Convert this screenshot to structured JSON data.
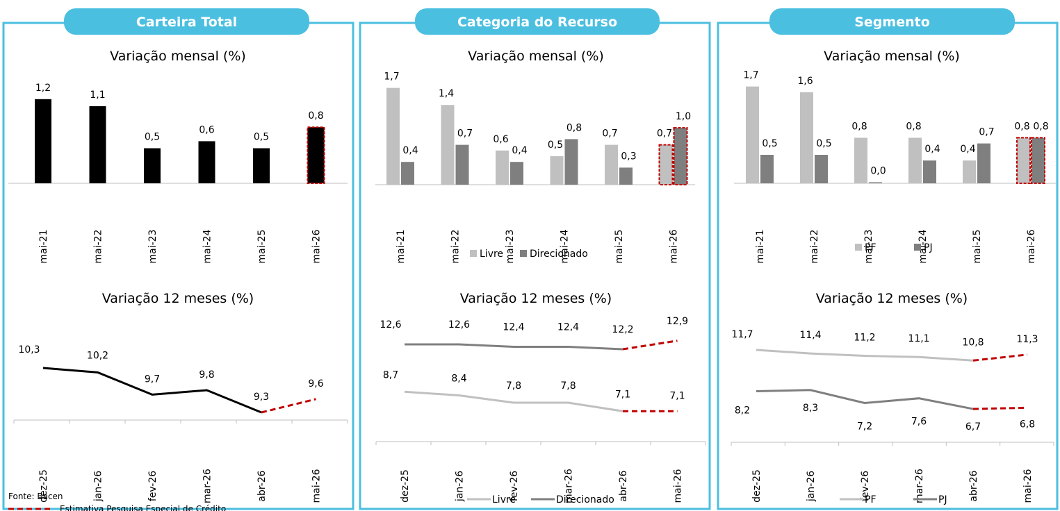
{
  "panels": [
    {
      "tab": "Carteira Total",
      "monthly_title": "Variação mensal (%)",
      "annual_title": "Variação 12 meses (%)"
    },
    {
      "tab": "Categoria do Recurso",
      "monthly_title": "Variação mensal (%)",
      "annual_title": "Variação 12 meses (%)"
    },
    {
      "tab": "Segmento",
      "monthly_title": "Variação mensal (%)",
      "annual_title": "Variação 12 meses (%)"
    }
  ],
  "footer": {
    "source": "Fonte: Bacen",
    "estimate_label": "Estimativa Pesquisa Especial de Crédito"
  },
  "colors": {
    "frame": "#4bbfe0",
    "tab_fill": "#4bbfe0",
    "black": "#000000",
    "light_gray": "#c0c0c0",
    "dark_gray": "#7f7f7f",
    "estimate": "#c00000"
  },
  "chart_data": [
    {
      "id": "total-monthly",
      "type": "bar",
      "title": "Variação mensal (%)",
      "categories": [
        "mai-21",
        "mai-22",
        "mai-23",
        "mai-24",
        "mai-25",
        "mai-26"
      ],
      "series": [
        {
          "values": [
            1.2,
            1.1,
            0.5,
            0.6,
            0.5,
            0.8
          ]
        }
      ],
      "estimate_index": 5
    },
    {
      "id": "total-12m",
      "type": "line",
      "title": "Variação 12 meses (%)",
      "categories": [
        "dez-25",
        "jan-26",
        "fev-26",
        "mar-26",
        "abr-26",
        "mai-26"
      ],
      "series": [
        {
          "values": [
            10.3,
            10.2,
            9.7,
            9.8,
            9.3,
            9.6
          ]
        }
      ],
      "estimate_from_index": 4
    },
    {
      "id": "categoria-monthly",
      "type": "bar",
      "title": "Variação mensal (%)",
      "categories": [
        "mai-21",
        "mai-22",
        "mai-23",
        "mai-24",
        "mai-25",
        "mai-26"
      ],
      "series": [
        {
          "name": "Livre",
          "values": [
            1.7,
            1.4,
            0.6,
            0.5,
            0.7,
            0.7
          ]
        },
        {
          "name": "Direcionado",
          "values": [
            0.4,
            0.7,
            0.4,
            0.8,
            0.3,
            1.0
          ]
        }
      ],
      "estimate_index": 5
    },
    {
      "id": "categoria-12m",
      "type": "line",
      "title": "Variação 12 meses (%)",
      "categories": [
        "dez-25",
        "jan-26",
        "fev-26",
        "mar-26",
        "abr-26",
        "mai-26"
      ],
      "series": [
        {
          "name": "Livre",
          "values": [
            8.7,
            8.4,
            7.8,
            7.8,
            7.1,
            7.1
          ]
        },
        {
          "name": "Direcionado",
          "values": [
            12.6,
            12.6,
            12.4,
            12.4,
            12.2,
            12.9
          ]
        }
      ],
      "estimate_from_index": 4
    },
    {
      "id": "segmento-monthly",
      "type": "bar",
      "title": "Variação mensal (%)",
      "categories": [
        "mai-21",
        "mai-22",
        "mai-23",
        "mai-24",
        "mai-25",
        "mai-26"
      ],
      "series": [
        {
          "name": "PF",
          "values": [
            1.7,
            1.6,
            0.8,
            0.8,
            0.4,
            0.8
          ]
        },
        {
          "name": "PJ",
          "values": [
            0.5,
            0.5,
            0.0,
            0.4,
            0.7,
            0.8
          ]
        }
      ],
      "estimate_index": 5
    },
    {
      "id": "segmento-12m",
      "type": "line",
      "title": "Variação 12 meses (%)",
      "categories": [
        "dez-25",
        "jan-26",
        "fev-26",
        "mar-26",
        "abr-26",
        "mai-26"
      ],
      "series": [
        {
          "name": "PF",
          "values": [
            11.7,
            11.4,
            11.2,
            11.1,
            10.8,
            11.3
          ]
        },
        {
          "name": "PJ",
          "values": [
            8.2,
            8.3,
            7.2,
            7.6,
            6.7,
            6.8
          ]
        }
      ],
      "estimate_from_index": 4
    }
  ]
}
